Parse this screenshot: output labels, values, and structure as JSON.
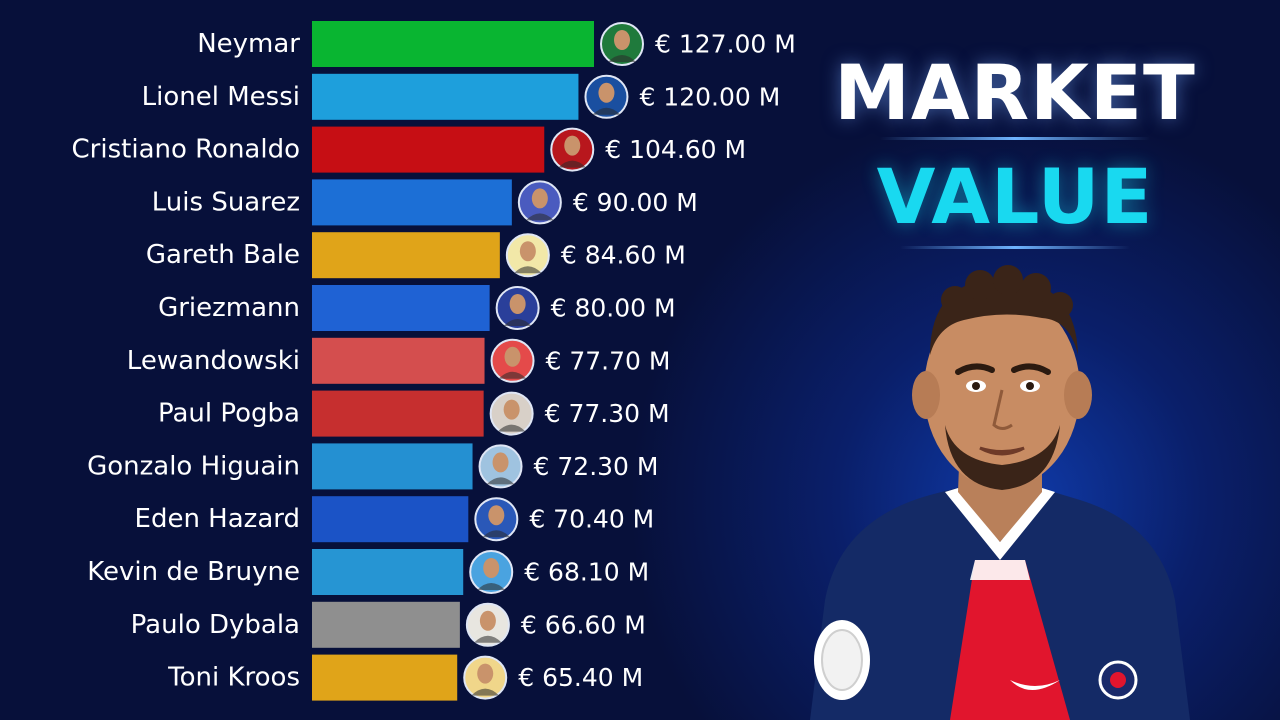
{
  "title": {
    "line1": "MARKET",
    "line2": "VALUE"
  },
  "chart_data": {
    "type": "bar",
    "orientation": "horizontal",
    "categories": [
      "Neymar",
      "Lionel Messi",
      "Cristiano Ronaldo",
      "Luis Suarez",
      "Gareth Bale",
      "Griezmann",
      "Lewandowski",
      "Paul Pogba",
      "Gonzalo Higuain",
      "Eden Hazard",
      "Kevin de Bruyne",
      "Paulo Dybala",
      "Toni Kroos"
    ],
    "values": [
      127.0,
      120.0,
      104.6,
      90.0,
      84.6,
      80.0,
      77.7,
      77.3,
      72.3,
      70.4,
      68.1,
      66.6,
      65.4
    ],
    "value_labels": [
      "€ 127.00 M",
      "€ 120.00 M",
      "€ 104.60 M",
      "€ 90.00 M",
      "€ 84.60 M",
      "€ 80.00 M",
      "€ 77.70 M",
      "€ 77.30 M",
      "€ 72.30 M",
      "€ 70.40 M",
      "€ 68.10 M",
      "€ 66.60 M",
      "€ 65.40 M"
    ],
    "colors": [
      "#09b531",
      "#1e9fdc",
      "#c60e14",
      "#1c6fd6",
      "#e0a419",
      "#1f62d4",
      "#d44e4e",
      "#c62f2f",
      "#2490d2",
      "#1b53c6",
      "#2695d3",
      "#8f8f8f",
      "#e0a419"
    ],
    "avatar_colors": [
      "#1f7a3c",
      "#1a4fa0",
      "#b8171d",
      "#4a5bbf",
      "#f2e8a8",
      "#2a3f9a",
      "#e44a4a",
      "#d8d0c8",
      "#9fc3e0",
      "#2a58b8",
      "#4aa3e0",
      "#e8e6e0",
      "#f0d68a"
    ],
    "grid": false,
    "legend": "none"
  },
  "icons": {
    "avatar": "player-avatar-icon",
    "player_art": "neymar-illustration"
  }
}
